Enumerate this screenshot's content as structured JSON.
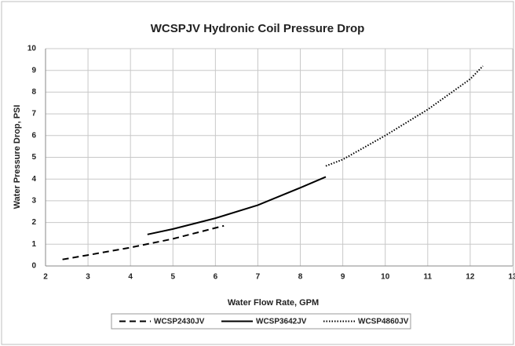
{
  "chart_data": {
    "type": "line",
    "title": "WCSPJV Hydronic Coil Pressure Drop",
    "xlabel": "Water Flow Rate, GPM",
    "ylabel": "Water Pressure Drop, PSI",
    "xlim": [
      2,
      13
    ],
    "xticks": [
      2,
      3,
      4,
      5,
      6,
      7,
      8,
      9,
      10,
      11,
      12,
      13
    ],
    "ylim": [
      0,
      10
    ],
    "yticks": [
      0,
      1,
      2,
      3,
      4,
      5,
      6,
      7,
      8,
      9,
      10
    ],
    "grid": true,
    "legend": "bottom",
    "series": [
      {
        "name": "WCSP2430JV",
        "color": "#000000",
        "dash": "dashed",
        "x": [
          2.4,
          3,
          4,
          5,
          6,
          6.2
        ],
        "values": [
          0.3,
          0.5,
          0.85,
          1.25,
          1.75,
          1.85
        ]
      },
      {
        "name": "WCSP3642JV",
        "color": "#000000",
        "dash": "solid",
        "x": [
          4.4,
          5,
          6,
          7,
          8,
          8.6
        ],
        "values": [
          1.45,
          1.7,
          2.2,
          2.8,
          3.6,
          4.1
        ]
      },
      {
        "name": "WCSP4860JV",
        "color": "#000000",
        "dash": "dotted",
        "x": [
          8.6,
          9,
          10,
          11,
          12,
          12.3
        ],
        "values": [
          4.6,
          4.9,
          6.0,
          7.2,
          8.6,
          9.2
        ]
      }
    ]
  }
}
